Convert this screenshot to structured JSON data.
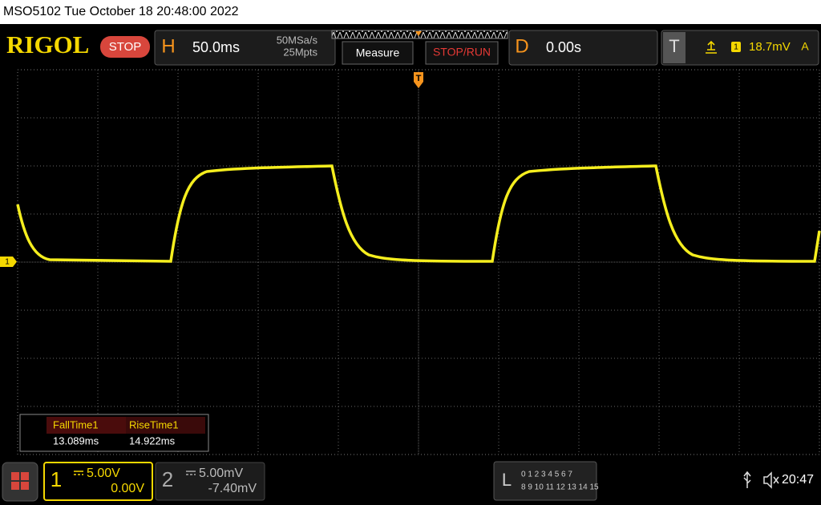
{
  "status_bar": {
    "text": "MSO5102  Tue October 18 20:48:00 2022"
  },
  "toolbar": {
    "logo": "RIGOL",
    "run_state": "STOP",
    "horizontal": {
      "label": "H",
      "timebase": "50.0ms",
      "sample_rate": "50MSa/s",
      "memory_depth": "25Mpts"
    },
    "measure_button": "Measure",
    "stop_run_button": "STOP/RUN",
    "delay": {
      "label": "D",
      "value": "0.00s"
    },
    "trigger": {
      "label": "T",
      "source": "1",
      "level": "18.7mV",
      "mode": "A"
    }
  },
  "markers": {
    "channel": "1",
    "trigger": "T"
  },
  "measurements": [
    {
      "name": "FallTime1",
      "value": "13.089ms"
    },
    {
      "name": "RiseTime1",
      "value": "14.922ms"
    }
  ],
  "channels": [
    {
      "id": "1",
      "scale": "5.00V",
      "offset": "0.00V"
    },
    {
      "id": "2",
      "scale": "5.00mV",
      "offset": "-7.40mV"
    }
  ],
  "logic": {
    "label": "L",
    "row1": "0 1 2 3 4 5 6 7",
    "row2": "8 9 10 11 12 13 14 15"
  },
  "clock": "20:47"
}
